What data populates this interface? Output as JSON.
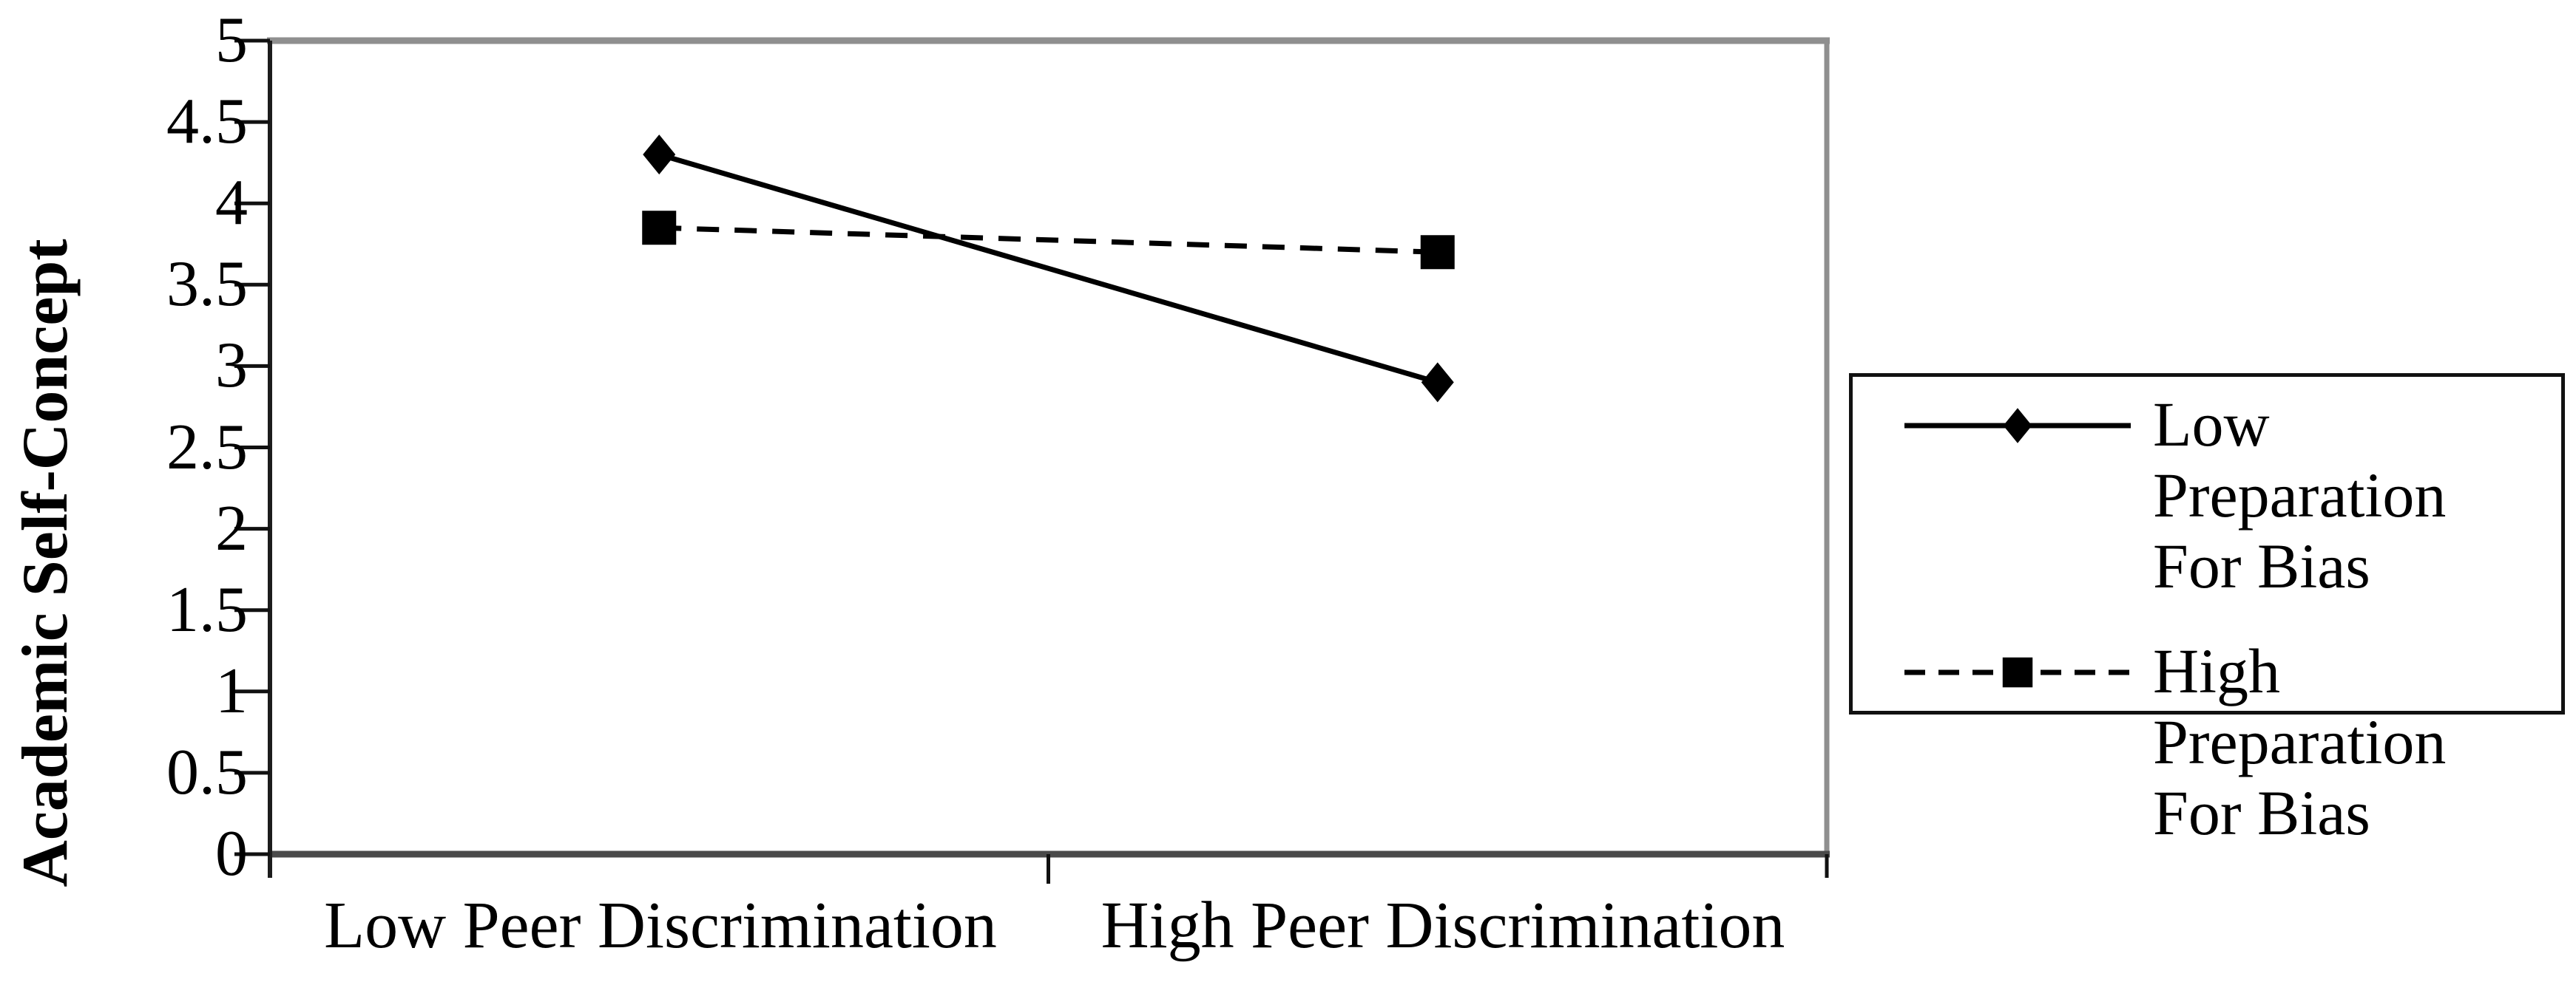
{
  "figure": {
    "background": "#ffffff",
    "ink_color": "#000000",
    "border_gray": "#8f8f8f",
    "bottom_axis_gray": "#4a4a4a"
  },
  "y_axis": {
    "title": "Academic Self-Concept",
    "tick_labels": [
      "5",
      "4.5",
      "4",
      "3.5",
      "3",
      "2.5",
      "2",
      "1.5",
      "1",
      "0.5",
      "0"
    ],
    "tick_values": [
      5,
      4.5,
      4,
      3.5,
      3,
      2.5,
      2,
      1.5,
      1,
      0.5,
      0
    ]
  },
  "x_axis": {
    "categories": [
      "Low Peer Discrimination",
      "High Peer Discrimination"
    ]
  },
  "legend": {
    "entries": [
      {
        "label": "Low Preparation For Bias",
        "label_wrapped": "Low Preparation\nFor Bias",
        "marker": "diamond",
        "line": "solid"
      },
      {
        "label": "High Preparation For Bias",
        "label_wrapped": "High Preparation\nFor Bias",
        "marker": "square",
        "line": "dashed"
      }
    ]
  },
  "chart_data": {
    "type": "line",
    "categories": [
      "Low Peer Discrimination",
      "High Peer Discrimination"
    ],
    "series": [
      {
        "name": "Low Preparation For Bias",
        "values": [
          4.3,
          2.9
        ],
        "marker": "diamond",
        "line": "solid",
        "color": "#000000"
      },
      {
        "name": "High Preparation For Bias",
        "values": [
          3.85,
          3.7
        ],
        "marker": "square",
        "line": "dashed",
        "color": "#000000"
      }
    ],
    "title": "",
    "xlabel": "",
    "ylabel": "Academic Self-Concept",
    "ylim": [
      0,
      5
    ],
    "ytick_step": 0.5,
    "grid": false,
    "legend_position": "right-outside"
  }
}
